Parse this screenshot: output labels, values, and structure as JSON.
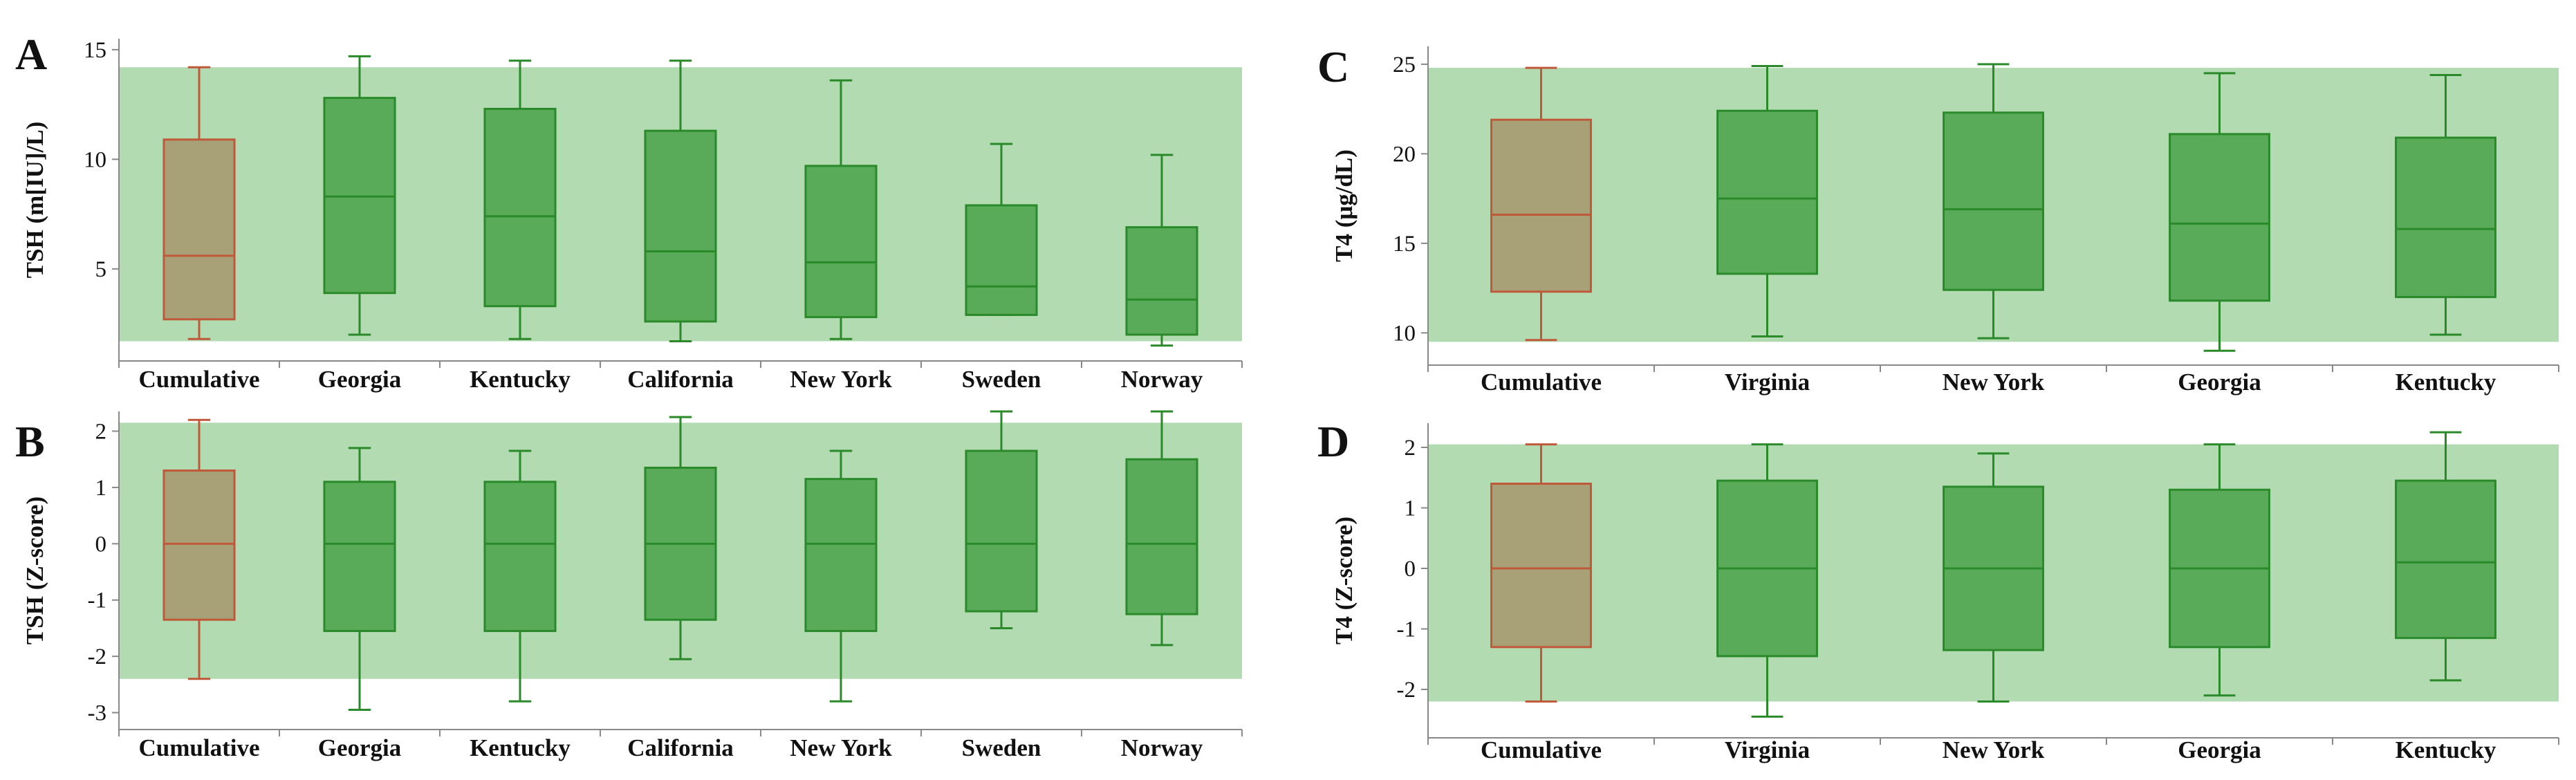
{
  "colors": {
    "reference_band": "#b2dbb1",
    "box_green": "#59ab59",
    "box_green_edge": "#2a8a2a",
    "box_cumulative": "#a8a077",
    "box_cumulative_edge": "#c0593a",
    "axis": "#888888"
  },
  "chart_data": [
    {
      "panel": "A",
      "type": "box",
      "ylabel": "TSH (m[IU]/L)",
      "ylim": [
        0.8,
        15.5
      ],
      "yticks": [
        5,
        10,
        15
      ],
      "yticklabels": [
        "5",
        "10",
        "15"
      ],
      "reference_band": [
        1.7,
        14.2
      ],
      "categories": [
        "Cumulative",
        "Georgia",
        "Kentucky",
        "California",
        "New York",
        "Sweden",
        "Norway"
      ],
      "boxes": [
        {
          "whisker_low": 1.8,
          "q1": 2.7,
          "median": 5.6,
          "q3": 10.9,
          "whisker_high": 14.2,
          "highlight": true
        },
        {
          "whisker_low": 2.0,
          "q1": 3.9,
          "median": 8.3,
          "q3": 12.8,
          "whisker_high": 14.7,
          "highlight": false
        },
        {
          "whisker_low": 1.8,
          "q1": 3.3,
          "median": 7.4,
          "q3": 12.3,
          "whisker_high": 14.5,
          "highlight": false
        },
        {
          "whisker_low": 1.7,
          "q1": 2.6,
          "median": 5.8,
          "q3": 11.3,
          "whisker_high": 14.5,
          "highlight": false
        },
        {
          "whisker_low": 1.8,
          "q1": 2.8,
          "median": 5.3,
          "q3": 9.7,
          "whisker_high": 13.6,
          "highlight": false
        },
        {
          "whisker_low": 2.9,
          "q1": 2.9,
          "median": 4.2,
          "q3": 7.9,
          "whisker_high": 10.7,
          "highlight": false
        },
        {
          "whisker_low": 1.5,
          "q1": 2.0,
          "median": 3.6,
          "q3": 6.9,
          "whisker_high": 10.2,
          "highlight": false
        }
      ]
    },
    {
      "panel": "B",
      "type": "box",
      "ylabel": "TSH (Z-score)",
      "ylim": [
        -3.3,
        2.35
      ],
      "yticks": [
        2,
        1,
        0,
        -1,
        -2,
        -3
      ],
      "yticklabels": [
        "2",
        "1",
        "0",
        "-1",
        "-2",
        "-3"
      ],
      "reference_band": [
        -2.4,
        2.15
      ],
      "categories": [
        "Cumulative",
        "Georgia",
        "Kentucky",
        "California",
        "New York",
        "Sweden",
        "Norway"
      ],
      "boxes": [
        {
          "whisker_low": -2.4,
          "q1": -1.35,
          "median": 0.0,
          "q3": 1.3,
          "whisker_high": 2.2,
          "highlight": true
        },
        {
          "whisker_low": -2.95,
          "q1": -1.55,
          "median": 0.0,
          "q3": 1.1,
          "whisker_high": 1.7,
          "highlight": false
        },
        {
          "whisker_low": -2.8,
          "q1": -1.55,
          "median": 0.0,
          "q3": 1.1,
          "whisker_high": 1.65,
          "highlight": false
        },
        {
          "whisker_low": -2.05,
          "q1": -1.35,
          "median": 0.0,
          "q3": 1.35,
          "whisker_high": 2.25,
          "highlight": false
        },
        {
          "whisker_low": -2.8,
          "q1": -1.55,
          "median": 0.0,
          "q3": 1.15,
          "whisker_high": 1.65,
          "highlight": false
        },
        {
          "whisker_low": -1.5,
          "q1": -1.2,
          "median": 0.0,
          "q3": 1.65,
          "whisker_high": 2.35,
          "highlight": false
        },
        {
          "whisker_low": -1.8,
          "q1": -1.25,
          "median": 0.0,
          "q3": 1.5,
          "whisker_high": 2.35,
          "highlight": false
        }
      ]
    },
    {
      "panel": "C",
      "type": "box",
      "ylabel": "T4 (μg/dL)",
      "ylim": [
        8.2,
        26.0
      ],
      "yticks": [
        10,
        15,
        20,
        25
      ],
      "yticklabels": [
        "10",
        "15",
        "20",
        "25"
      ],
      "reference_band": [
        9.5,
        24.8
      ],
      "categories": [
        "Cumulative",
        "Virginia",
        "New York",
        "Georgia",
        "Kentucky"
      ],
      "boxes": [
        {
          "whisker_low": 9.6,
          "q1": 12.3,
          "median": 16.6,
          "q3": 21.9,
          "whisker_high": 24.8,
          "highlight": true
        },
        {
          "whisker_low": 9.8,
          "q1": 13.3,
          "median": 17.5,
          "q3": 22.4,
          "whisker_high": 24.9,
          "highlight": false
        },
        {
          "whisker_low": 9.7,
          "q1": 12.4,
          "median": 16.9,
          "q3": 22.3,
          "whisker_high": 25.0,
          "highlight": false
        },
        {
          "whisker_low": 9.0,
          "q1": 11.8,
          "median": 16.1,
          "q3": 21.1,
          "whisker_high": 24.5,
          "highlight": false
        },
        {
          "whisker_low": 9.9,
          "q1": 12.0,
          "median": 15.8,
          "q3": 20.9,
          "whisker_high": 24.4,
          "highlight": false
        }
      ]
    },
    {
      "panel": "D",
      "type": "box",
      "ylabel": "T4 (Z-score)",
      "ylim": [
        -2.8,
        2.4
      ],
      "yticks": [
        2,
        1,
        0,
        -1,
        -2
      ],
      "yticklabels": [
        "2",
        "1",
        "0",
        "-1",
        "-2"
      ],
      "reference_band": [
        -2.2,
        2.05
      ],
      "categories": [
        "Cumulative",
        "Virginia",
        "New York",
        "Georgia",
        "Kentucky"
      ],
      "boxes": [
        {
          "whisker_low": -2.2,
          "q1": -1.3,
          "median": 0.0,
          "q3": 1.4,
          "whisker_high": 2.05,
          "highlight": true
        },
        {
          "whisker_low": -2.45,
          "q1": -1.45,
          "median": 0.0,
          "q3": 1.45,
          "whisker_high": 2.05,
          "highlight": false
        },
        {
          "whisker_low": -2.2,
          "q1": -1.35,
          "median": 0.0,
          "q3": 1.35,
          "whisker_high": 1.9,
          "highlight": false
        },
        {
          "whisker_low": -2.1,
          "q1": -1.3,
          "median": 0.0,
          "q3": 1.3,
          "whisker_high": 2.05,
          "highlight": false
        },
        {
          "whisker_low": -1.85,
          "q1": -1.15,
          "median": 0.1,
          "q3": 1.45,
          "whisker_high": 2.25,
          "highlight": false
        }
      ]
    }
  ]
}
